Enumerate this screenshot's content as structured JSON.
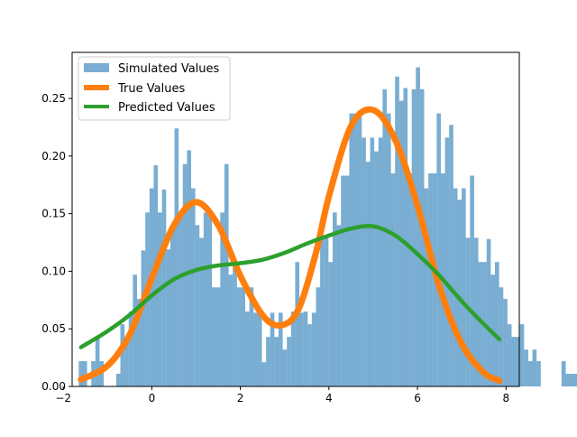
{
  "chart_data": {
    "type": "bar",
    "title": "",
    "xlabel": "",
    "ylabel": "",
    "xlim": [
      -1.8,
      8.3
    ],
    "ylim": [
      0.0,
      0.29
    ],
    "grid": false,
    "legend_position": "top-left",
    "x_ticks": [
      -2,
      0,
      2,
      4,
      6,
      8
    ],
    "x_tick_labels": [
      "−2",
      "0",
      "2",
      "4",
      "6",
      "8"
    ],
    "y_ticks": [
      0.0,
      0.05,
      0.1,
      0.15,
      0.2,
      0.25
    ],
    "y_tick_labels": [
      "0.00",
      "0.05",
      "0.10",
      "0.15",
      "0.20",
      "0.25"
    ],
    "histogram": {
      "name": "Simulated Values",
      "color": "#1f77b4",
      "opacity": 0.6,
      "bin_start": -1.65,
      "bin_width": 0.094,
      "values": [
        0.022,
        0.022,
        0.0,
        0.022,
        0.043,
        0.022,
        0.0,
        0.0,
        0.0,
        0.011,
        0.054,
        0.043,
        0.065,
        0.097,
        0.076,
        0.118,
        0.151,
        0.172,
        0.192,
        0.151,
        0.171,
        0.119,
        0.139,
        0.224,
        0.151,
        0.193,
        0.205,
        0.172,
        0.14,
        0.129,
        0.151,
        0.151,
        0.086,
        0.086,
        0.151,
        0.193,
        0.097,
        0.108,
        0.086,
        0.086,
        0.065,
        0.086,
        0.064,
        0.065,
        0.021,
        0.043,
        0.064,
        0.043,
        0.064,
        0.032,
        0.043,
        0.065,
        0.108,
        0.064,
        0.065,
        0.054,
        0.064,
        0.086,
        0.129,
        0.129,
        0.108,
        0.151,
        0.14,
        0.183,
        0.183,
        0.237,
        0.237,
        0.237,
        0.216,
        0.195,
        0.216,
        0.204,
        0.216,
        0.258,
        0.237,
        0.185,
        0.269,
        0.248,
        0.259,
        0.185,
        0.258,
        0.277,
        0.258,
        0.172,
        0.185,
        0.185,
        0.237,
        0.185,
        0.216,
        0.227,
        0.172,
        0.162,
        0.172,
        0.129,
        0.183,
        0.129,
        0.108,
        0.108,
        0.128,
        0.097,
        0.108,
        0.086,
        0.076,
        0.054,
        0.043,
        0.043,
        0.054,
        0.032,
        0.022,
        0.032,
        0.022,
        0.0,
        0.0,
        0.0,
        0.0,
        0.0,
        0.022,
        0.011,
        0.011,
        0.011,
        0.022,
        0.011,
        0.032
      ]
    },
    "series": [
      {
        "name": "True Values",
        "color": "#ff7f0e",
        "x": [
          -1.6,
          -1.0,
          -0.5,
          0.0,
          0.5,
          1.0,
          1.5,
          2.0,
          2.5,
          2.9,
          3.3,
          3.7,
          4.0,
          4.5,
          5.0,
          5.5,
          6.0,
          6.5,
          7.0,
          7.5,
          7.85
        ],
        "y": [
          0.006,
          0.018,
          0.045,
          0.094,
          0.14,
          0.16,
          0.14,
          0.096,
          0.062,
          0.053,
          0.066,
          0.115,
          0.165,
          0.226,
          0.24,
          0.214,
          0.157,
          0.086,
          0.037,
          0.012,
          0.005
        ]
      },
      {
        "name": "Predicted Values",
        "color": "#2ca02c",
        "x": [
          -1.6,
          -1.0,
          -0.5,
          0.0,
          0.5,
          1.0,
          1.5,
          2.0,
          2.5,
          3.0,
          3.5,
          4.0,
          4.5,
          5.0,
          5.5,
          6.0,
          6.5,
          7.0,
          7.5,
          7.85
        ],
        "y": [
          0.034,
          0.048,
          0.062,
          0.079,
          0.093,
          0.101,
          0.105,
          0.107,
          0.11,
          0.116,
          0.124,
          0.131,
          0.137,
          0.139,
          0.131,
          0.115,
          0.096,
          0.074,
          0.054,
          0.041
        ]
      }
    ],
    "legend": [
      {
        "label": "Simulated Values",
        "kind": "patch"
      },
      {
        "label": "True Values",
        "kind": "line"
      },
      {
        "label": "Predicted Values",
        "kind": "line"
      }
    ]
  }
}
